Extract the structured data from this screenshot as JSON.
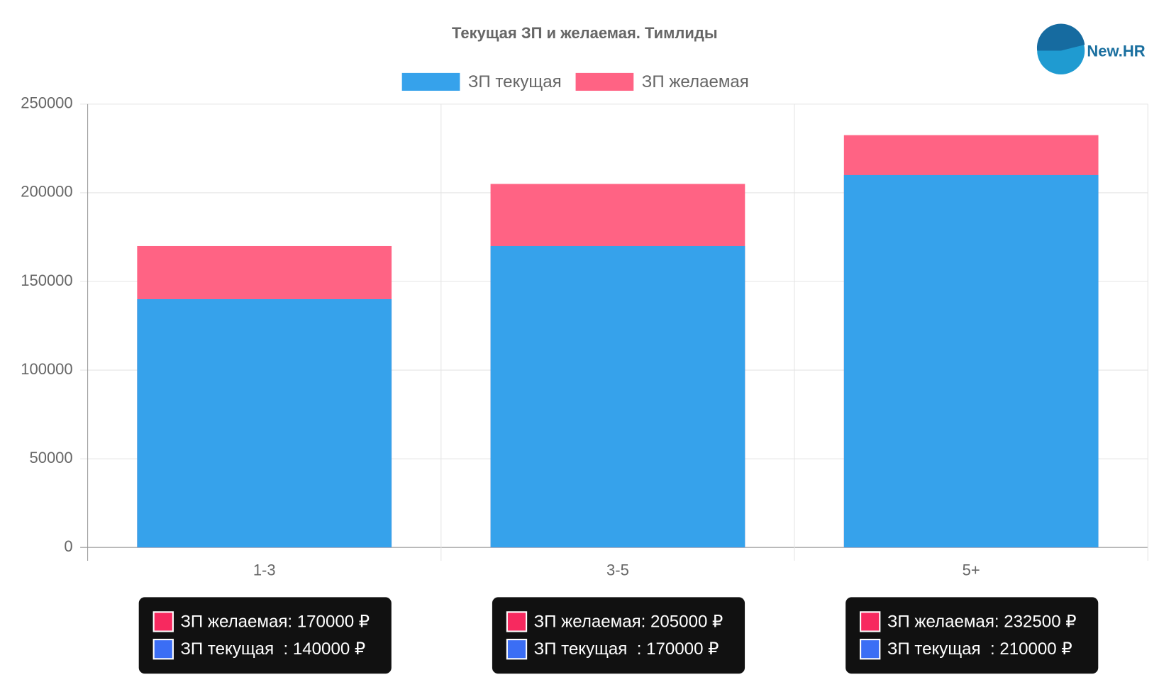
{
  "logo": "New.HR",
  "chart_data": {
    "type": "bar",
    "title": "Текущая ЗП и желаемая. Тимлиды",
    "categories": [
      "1-3",
      "3-5",
      "5+"
    ],
    "series": [
      {
        "name": "ЗП желаемая",
        "color": "#ff6384",
        "tooltip_color": "#f7295f",
        "values": [
          170000,
          205000,
          232500
        ],
        "value_labels": [
          "ЗП желаемая: 170000 ₽",
          "ЗП желаемая: 205000 ₽",
          "ЗП желаемая: 232500 ₽"
        ]
      },
      {
        "name": "ЗП текущая",
        "color": "#36a2eb",
        "tooltip_color": "#3b6ef5",
        "values": [
          140000,
          170000,
          210000
        ],
        "value_labels": [
          "ЗП текущая  : 140000 ₽",
          "ЗП текущая  : 170000 ₽",
          "ЗП текущая  : 210000 ₽"
        ]
      }
    ],
    "legend_order": [
      1,
      0
    ],
    "ylim": [
      0,
      250000
    ],
    "yticks": [
      0,
      50000,
      100000,
      150000,
      200000,
      250000
    ],
    "grid": true
  }
}
